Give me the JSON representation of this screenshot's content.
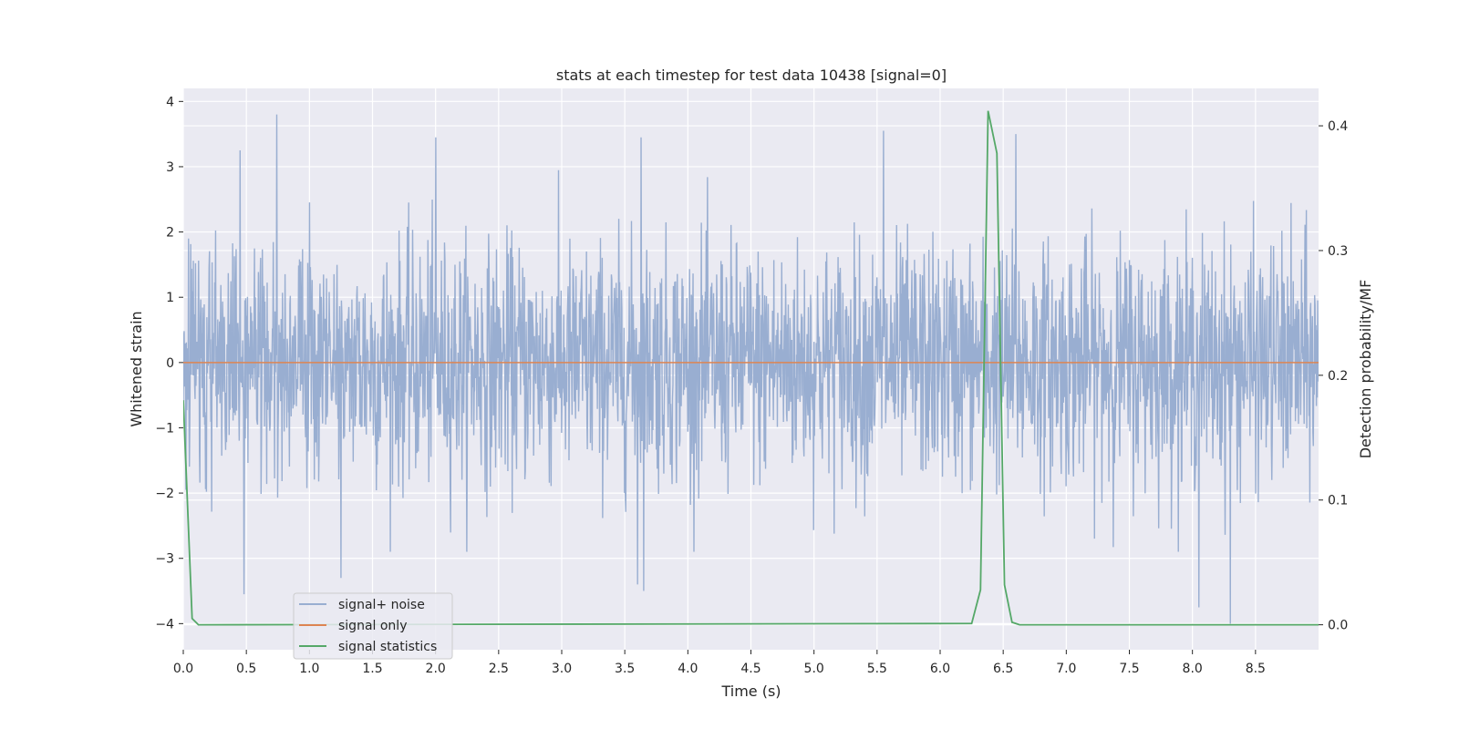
{
  "chart_data": {
    "type": "line",
    "title": "stats at each timestep for test data 10438 [signal=0]",
    "xlabel": "Time (s)",
    "ylabel": "Whitened strain",
    "y2label": "Detection probability/MF",
    "xlim": [
      0.0,
      9.0
    ],
    "ylim": [
      -4.4,
      4.2
    ],
    "y2lim": [
      -0.02,
      0.43
    ],
    "xticks": [
      "0.0",
      "0.5",
      "1.0",
      "1.5",
      "2.0",
      "2.5",
      "3.0",
      "3.5",
      "4.0",
      "4.5",
      "5.0",
      "5.5",
      "6.0",
      "6.5",
      "7.0",
      "7.5",
      "8.0",
      "8.5"
    ],
    "yticks": [
      "4",
      "3",
      "2",
      "1",
      "0",
      "−1",
      "−2",
      "−3",
      "−4"
    ],
    "y2ticks": [
      "0.4",
      "0.3",
      "0.2",
      "0.1",
      "0.0"
    ],
    "grid": true,
    "legend_position": "lower-left",
    "colors": {
      "signal_noise": "#99aed1",
      "signal_only": "#dd8452",
      "signal_statistics": "#55a868",
      "plot_bg": "#eaeaf2",
      "grid": "#ffffff"
    },
    "series": [
      {
        "name": "signal+ noise",
        "axis": "left",
        "noise_std": 0.9,
        "duration": 9.0,
        "peaks": [
          [
            0.45,
            3.25
          ],
          [
            0.74,
            3.8
          ],
          [
            2.0,
            3.45
          ],
          [
            3.63,
            3.45
          ],
          [
            5.55,
            3.55
          ],
          [
            6.6,
            3.5
          ],
          [
            0.48,
            -3.55
          ],
          [
            1.25,
            -3.3
          ],
          [
            3.6,
            -3.4
          ],
          [
            3.65,
            -3.5
          ],
          [
            8.05,
            -3.75
          ],
          [
            8.3,
            -4.0
          ]
        ]
      },
      {
        "name": "signal only",
        "axis": "left",
        "x": [
          0.0,
          9.0
        ],
        "values": [
          0.0,
          0.0
        ]
      },
      {
        "name": "signal statistics",
        "axis": "right",
        "x": [
          0.0,
          0.07,
          0.12,
          6.25,
          6.32,
          6.38,
          6.45,
          6.51,
          6.57,
          6.63,
          9.0
        ],
        "values": [
          0.18,
          0.005,
          0.0,
          0.001,
          0.028,
          0.412,
          0.378,
          0.032,
          0.002,
          0.0,
          0.0
        ]
      }
    ]
  }
}
